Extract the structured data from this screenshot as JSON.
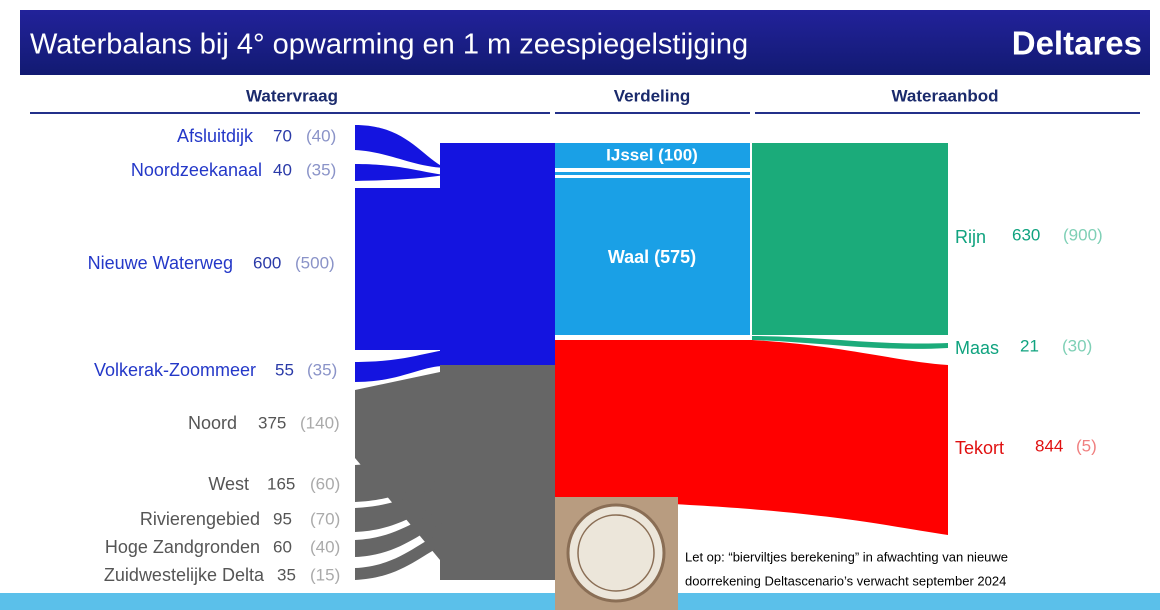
{
  "header": {
    "title": "Waterbalans bij 4° opwarming en 1 m zeespiegelstijging",
    "logo": "Deltares"
  },
  "columns": [
    "Watervraag",
    "Verdeling",
    "Wateraanbod"
  ],
  "demand": [
    {
      "name": "Afsluitdijk",
      "value": 70,
      "previous": "(40)"
    },
    {
      "name": "Noordzeekanaal",
      "value": 40,
      "previous": "(35)"
    },
    {
      "name": "Nieuwe Waterweg",
      "value": 600,
      "previous": "(500)"
    },
    {
      "name": "Volkerak-Zoommeer",
      "value": 55,
      "previous": "(35)"
    },
    {
      "name": "Noord",
      "value": 375,
      "previous": "(140)"
    },
    {
      "name": "West",
      "value": 165,
      "previous": "(60)"
    },
    {
      "name": "Rivierengebied",
      "value": 95,
      "previous": "(70)"
    },
    {
      "name": "Hoge Zandgronden",
      "value": 60,
      "previous": "(40)"
    },
    {
      "name": "Zuidwestelijke Delta",
      "value": 35,
      "previous": "(15)"
    }
  ],
  "distribution": [
    "IJssel (100)",
    "Waal (575)"
  ],
  "supply": [
    {
      "name": "Rijn",
      "value": 630,
      "previous": "(900)"
    },
    {
      "name": "Maas",
      "value": 21,
      "previous": "(30)"
    },
    {
      "name": "Tekort",
      "value": 844,
      "previous": "(5)"
    }
  ],
  "note": [
    "Let op: “bierviltjes berekening” in afwachting van nieuwe",
    "doorrekening Deltascenario’s verwacht september 2024"
  ]
}
